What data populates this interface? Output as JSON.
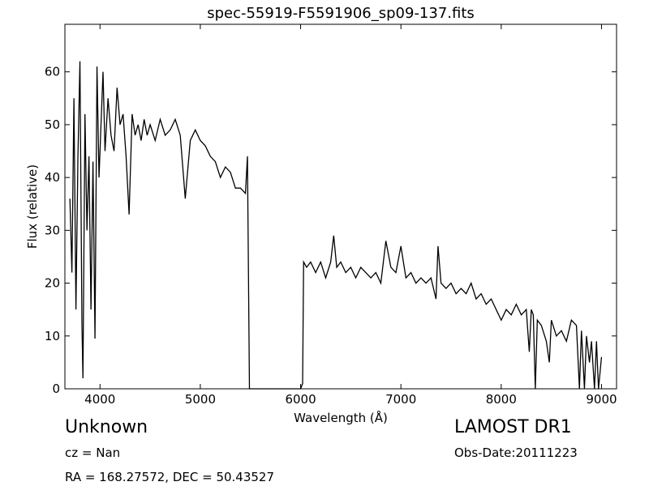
{
  "chart_data": {
    "type": "line",
    "title": "spec-55919-F5591906_sp09-137.fits",
    "x_label": "Wavelength (Å)",
    "y_label": "Flux (relative)",
    "series": [
      {
        "color": "#000000",
        "x": [
          3700,
          3720,
          3740,
          3760,
          3780,
          3800,
          3820,
          3830,
          3850,
          3870,
          3890,
          3910,
          3930,
          3950,
          3970,
          3990,
          4010,
          4030,
          4050,
          4080,
          4110,
          4140,
          4170,
          4200,
          4230,
          4260,
          4290,
          4320,
          4350,
          4380,
          4410,
          4440,
          4470,
          4500,
          4550,
          4600,
          4650,
          4700,
          4750,
          4800,
          4850,
          4900,
          4950,
          5000,
          5050,
          5100,
          5150,
          5200,
          5250,
          5300,
          5350,
          5400,
          5450,
          5470,
          5490,
          5600,
          5800,
          6000,
          6020,
          6030,
          6060,
          6100,
          6150,
          6200,
          6250,
          6300,
          6330,
          6360,
          6400,
          6450,
          6500,
          6550,
          6600,
          6650,
          6700,
          6750,
          6800,
          6850,
          6900,
          6950,
          7000,
          7050,
          7100,
          7150,
          7200,
          7250,
          7300,
          7350,
          7370,
          7400,
          7450,
          7500,
          7550,
          7600,
          7650,
          7700,
          7750,
          7800,
          7850,
          7900,
          7950,
          8000,
          8050,
          8100,
          8150,
          8200,
          8250,
          8280,
          8300,
          8320,
          8340,
          8360,
          8400,
          8450,
          8480,
          8500,
          8550,
          8600,
          8650,
          8700,
          8750,
          8780,
          8800,
          8830,
          8850,
          8880,
          8900,
          8930,
          8950,
          8970,
          9000
        ],
        "values": [
          36,
          22,
          55,
          15,
          44,
          62,
          12,
          2,
          52,
          30,
          44,
          15,
          43,
          9.5,
          61,
          40,
          50,
          60,
          45,
          55,
          48,
          45,
          57,
          50,
          52,
          44,
          33,
          52,
          48,
          50,
          47,
          51,
          48,
          50,
          47,
          51,
          48,
          49,
          51,
          48,
          36,
          47,
          49,
          47,
          46,
          44,
          43,
          40,
          42,
          41,
          38,
          38,
          37,
          44,
          0,
          0,
          0,
          0,
          1,
          24,
          23,
          24,
          22,
          24,
          21,
          24,
          29,
          23,
          24,
          22,
          23,
          21,
          23,
          22,
          21,
          22,
          20,
          28,
          23,
          22,
          27,
          21,
          22,
          20,
          21,
          20,
          21,
          17,
          27,
          20,
          19,
          20,
          18,
          19,
          18,
          20,
          17,
          18,
          16,
          17,
          15,
          13,
          15,
          14,
          16,
          14,
          15,
          7,
          15,
          14,
          0,
          13,
          12,
          9,
          5,
          13,
          10,
          11,
          9,
          13,
          12,
          0,
          11,
          0,
          10,
          5,
          9,
          0,
          9,
          0,
          6
        ]
      }
    ],
    "xlim": [
      3650,
      9150
    ],
    "ylim": [
      0,
      69
    ],
    "xticks": [
      4000,
      5000,
      6000,
      7000,
      8000,
      9000
    ],
    "yticks": [
      0,
      10,
      20,
      30,
      40,
      50,
      60
    ]
  },
  "annotations": {
    "object_class": "Unknown",
    "redshift": "cz = Nan",
    "coordinates": "RA = 168.27572, DEC = 50.43527",
    "survey": "LAMOST DR1",
    "obs_date": "Obs-Date:20111223"
  }
}
